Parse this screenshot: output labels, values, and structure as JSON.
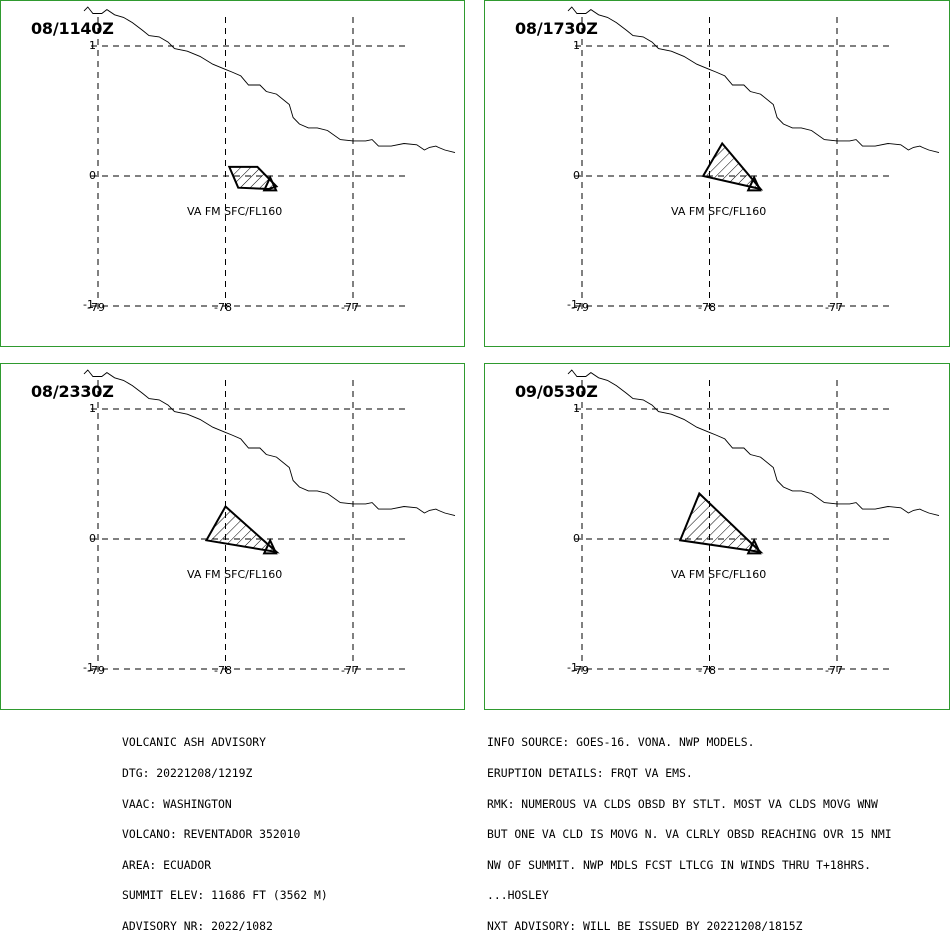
{
  "panels": [
    {
      "time": "08/1140Z",
      "label": "VA FM SFC/FL160",
      "plume": [
        [
          -77.97,
          0.07
        ],
        [
          -77.75,
          0.07
        ],
        [
          -77.6,
          -0.08
        ],
        [
          -77.66,
          -0.1
        ],
        [
          -77.9,
          -0.09
        ]
      ]
    },
    {
      "time": "08/1730Z",
      "label": "VA FM SFC/FL160",
      "plume": [
        [
          -78.05,
          0.0
        ],
        [
          -77.9,
          0.25
        ],
        [
          -77.6,
          -0.1
        ]
      ]
    },
    {
      "time": "08/2330Z",
      "label": "VA FM SFC/FL160",
      "plume": [
        [
          -78.15,
          -0.01
        ],
        [
          -78.0,
          0.25
        ],
        [
          -77.6,
          -0.1
        ]
      ]
    },
    {
      "time": "09/0530Z",
      "label": "VA FM SFC/FL160",
      "plume": [
        [
          -78.23,
          -0.01
        ],
        [
          -78.08,
          0.35
        ],
        [
          -77.6,
          -0.1
        ]
      ]
    }
  ],
  "axes": {
    "y_ticks": [
      "1",
      "0",
      "-1"
    ],
    "x_ticks": [
      "-79",
      "-78",
      "-77"
    ]
  },
  "volcano": {
    "name": "REVENTADOR",
    "lon": -77.65,
    "lat": -0.08
  },
  "coastline": [
    [
      -79.11,
      1.27
    ],
    [
      -79.08,
      1.3
    ],
    [
      -79.04,
      1.25
    ],
    [
      -78.97,
      1.25
    ],
    [
      -78.93,
      1.28
    ],
    [
      -78.87,
      1.24
    ],
    [
      -78.8,
      1.22
    ],
    [
      -78.73,
      1.18
    ],
    [
      -78.65,
      1.12
    ],
    [
      -78.6,
      1.08
    ],
    [
      -78.52,
      1.07
    ],
    [
      -78.45,
      1.03
    ],
    [
      -78.4,
      0.98
    ],
    [
      -78.3,
      0.96
    ],
    [
      -78.2,
      0.92
    ],
    [
      -78.1,
      0.86
    ],
    [
      -78.0,
      0.82
    ],
    [
      -77.95,
      0.8
    ],
    [
      -77.88,
      0.77
    ],
    [
      -77.82,
      0.7
    ],
    [
      -77.73,
      0.7
    ],
    [
      -77.68,
      0.65
    ],
    [
      -77.6,
      0.63
    ],
    [
      -77.5,
      0.55
    ],
    [
      -77.47,
      0.45
    ],
    [
      -77.42,
      0.4
    ],
    [
      -77.35,
      0.37
    ],
    [
      -77.28,
      0.37
    ],
    [
      -77.2,
      0.35
    ],
    [
      -77.1,
      0.28
    ],
    [
      -77.0,
      0.27
    ],
    [
      -76.9,
      0.27
    ],
    [
      -76.85,
      0.28
    ],
    [
      -76.8,
      0.23
    ],
    [
      -76.7,
      0.23
    ],
    [
      -76.6,
      0.25
    ],
    [
      -76.5,
      0.24
    ],
    [
      -76.44,
      0.2
    ],
    [
      -76.4,
      0.22
    ],
    [
      -76.35,
      0.23
    ],
    [
      -76.33,
      0.22
    ],
    [
      -76.28,
      0.2
    ],
    [
      -76.2,
      0.18
    ]
  ],
  "advisory_left": [
    "VOLCANIC ASH ADVISORY",
    "DTG: 20221208/1219Z",
    "VAAC: WASHINGTON",
    "VOLCANO: REVENTADOR 352010",
    "AREA: ECUADOR",
    "SUMMIT ELEV: 11686 FT (3562 M)",
    "ADVISORY NR: 2022/1082"
  ],
  "advisory_right": [
    "INFO SOURCE: GOES-16. VONA. NWP MODELS.",
    "ERUPTION DETAILS: FRQT VA EMS.",
    "RMK: NUMEROUS VA CLDS OBSD BY STLT. MOST VA CLDS MOVG WNW",
    "BUT ONE VA CLD IS MOVG N. VA CLRLY OBSD REACHING OVR 15 NMI",
    "NW OF SUMMIT. NWP MDLS FCST LTLCG IN WINDS THRU T+18HRS.",
    "...HOSLEY",
    "NXT ADVISORY: WILL BE ISSUED BY 20221208/1815Z"
  ]
}
